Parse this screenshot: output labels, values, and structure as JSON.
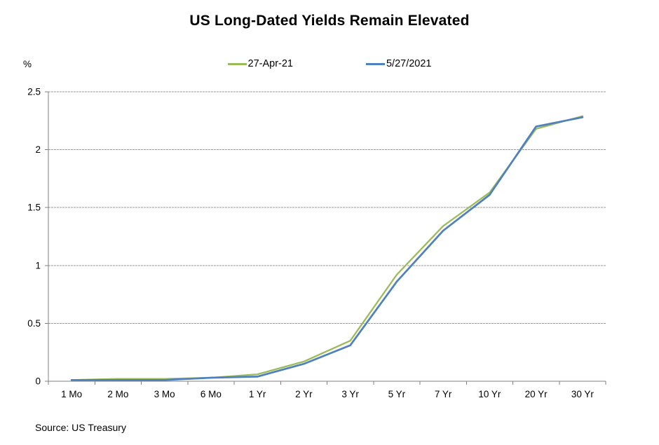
{
  "y_unit_label": "%",
  "source_note": "Source: US Treasury",
  "colors": {
    "series_green": "#9BBB59",
    "series_blue": "#4F81BD",
    "gridline": "#9a9a9a",
    "axis": "#808080"
  },
  "chart_data": {
    "type": "line",
    "title": "US Long-Dated Yields Remain Elevated",
    "ylabel": "%",
    "xlabel": "",
    "categories": [
      "1 Mo",
      "2 Mo",
      "3 Mo",
      "6 Mo",
      "1 Yr",
      "2 Yr",
      "3 Yr",
      "5 Yr",
      "7 Yr",
      "10 Yr",
      "20 Yr",
      "30 Yr"
    ],
    "series": [
      {
        "name": "27-Apr-21",
        "color": "#9BBB59",
        "values": [
          0.01,
          0.02,
          0.02,
          0.03,
          0.06,
          0.17,
          0.35,
          0.92,
          1.34,
          1.63,
          2.18,
          2.29
        ]
      },
      {
        "name": "5/27/2021",
        "color": "#4F81BD",
        "values": [
          0.01,
          0.01,
          0.01,
          0.03,
          0.04,
          0.15,
          0.31,
          0.86,
          1.3,
          1.61,
          2.2,
          2.28
        ]
      }
    ],
    "ylim": [
      0,
      2.5
    ],
    "yticks": [
      "0",
      "0.5",
      "1",
      "1.5",
      "2",
      "2.5"
    ],
    "grid": true,
    "legend_position": "top"
  }
}
